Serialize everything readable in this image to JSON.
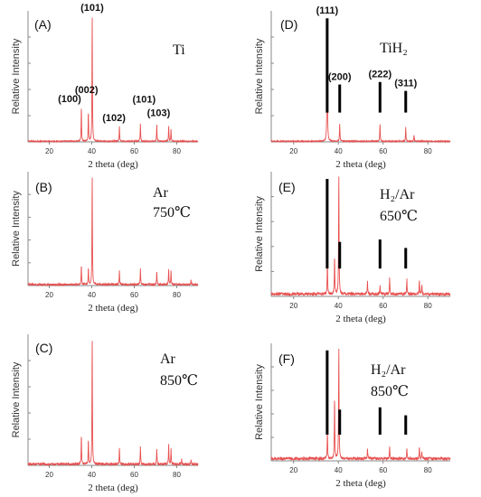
{
  "colors": {
    "trace": "#e85050",
    "axis": "#888888",
    "ref_line": "#000000"
  },
  "chart_data": [
    {
      "type": "line",
      "panel_label": "(A)",
      "condition_lines": [
        "Ti"
      ],
      "xlabel": "2 theta (deg)",
      "ylabel": "Relative Intensity",
      "xlim": [
        10,
        90
      ],
      "ylim": [
        0,
        1
      ],
      "xticks": [
        20,
        40,
        60,
        80
      ],
      "grid": false,
      "baseline": 0.005,
      "noise": 0.004,
      "peaks": [
        {
          "x": 35.1,
          "y": 0.27,
          "label": "(100)"
        },
        {
          "x": 38.4,
          "y": 0.24,
          "label": "(002)"
        },
        {
          "x": 40.2,
          "y": 1.0,
          "label": "(101)"
        },
        {
          "x": 53.0,
          "y": 0.12,
          "label": "(102)"
        },
        {
          "x": 62.9,
          "y": 0.14,
          "label": "(101)"
        },
        {
          "x": 70.6,
          "y": 0.13,
          "label": "(103)"
        },
        {
          "x": 76.2,
          "y": 0.12,
          "label": ""
        },
        {
          "x": 77.3,
          "y": 0.09,
          "label": ""
        }
      ]
    },
    {
      "type": "line",
      "panel_label": "(D)",
      "condition_lines": [
        "TiH₂"
      ],
      "xlabel": "2 theta (deg)",
      "ylabel": "Relative Intensity",
      "xlim": [
        10,
        90
      ],
      "ylim": [
        0,
        1
      ],
      "xticks": [
        20,
        40,
        60,
        80
      ],
      "grid": false,
      "baseline": 0.005,
      "noise": 0.004,
      "peaks": [
        {
          "x": 35.0,
          "y": 1.0,
          "label": ""
        },
        {
          "x": 40.6,
          "y": 0.14,
          "label": ""
        },
        {
          "x": 58.6,
          "y": 0.14,
          "label": ""
        },
        {
          "x": 70.1,
          "y": 0.11,
          "label": ""
        },
        {
          "x": 73.8,
          "y": 0.05,
          "label": ""
        }
      ],
      "reference_lines": [
        {
          "x": 35.0,
          "y": 0.74,
          "label": "(111)"
        },
        {
          "x": 40.6,
          "y": 0.22,
          "label": "(200)"
        },
        {
          "x": 58.6,
          "y": 0.24,
          "label": "(222)"
        },
        {
          "x": 70.1,
          "y": 0.17,
          "label": "(311)"
        }
      ]
    },
    {
      "type": "line",
      "panel_label": "(B)",
      "condition_lines": [
        "Ar",
        "750℃"
      ],
      "xlabel": "2 theta (deg)",
      "ylabel": "Relative Intensity",
      "xlim": [
        10,
        90
      ],
      "ylim": [
        0,
        1
      ],
      "xticks": [
        20,
        40,
        60,
        80
      ],
      "grid": false,
      "baseline": 0.01,
      "noise": 0.008,
      "peaks": [
        {
          "x": 35.1,
          "y": 0.18,
          "label": ""
        },
        {
          "x": 38.4,
          "y": 0.16,
          "label": ""
        },
        {
          "x": 40.2,
          "y": 1.0,
          "label": ""
        },
        {
          "x": 53.0,
          "y": 0.13,
          "label": ""
        },
        {
          "x": 62.9,
          "y": 0.14,
          "label": ""
        },
        {
          "x": 70.6,
          "y": 0.12,
          "label": ""
        },
        {
          "x": 76.2,
          "y": 0.14,
          "label": ""
        },
        {
          "x": 77.3,
          "y": 0.12,
          "label": ""
        },
        {
          "x": 86.7,
          "y": 0.04,
          "label": ""
        }
      ]
    },
    {
      "type": "line",
      "panel_label": "(E)",
      "condition_lines": [
        "H₂/Ar",
        "650℃"
      ],
      "xlabel": "2 theta (deg)",
      "ylabel": "Relative Intensity",
      "xlim": [
        10,
        90
      ],
      "ylim": [
        0,
        1
      ],
      "xticks": [
        20,
        40,
        60,
        80
      ],
      "grid": false,
      "baseline": 0.02,
      "noise": 0.012,
      "peaks": [
        {
          "x": 35.1,
          "y": 0.28,
          "label": ""
        },
        {
          "x": 38.3,
          "y": 0.32,
          "label": ""
        },
        {
          "x": 40.2,
          "y": 1.0,
          "label": ""
        },
        {
          "x": 53.0,
          "y": 0.11,
          "label": ""
        },
        {
          "x": 58.6,
          "y": 0.07,
          "label": ""
        },
        {
          "x": 62.9,
          "y": 0.13,
          "label": ""
        },
        {
          "x": 70.6,
          "y": 0.12,
          "label": ""
        },
        {
          "x": 76.2,
          "y": 0.11,
          "label": ""
        },
        {
          "x": 77.3,
          "y": 0.08,
          "label": ""
        }
      ],
      "reference_lines": [
        {
          "x": 35.0,
          "y": 0.74,
          "label": ""
        },
        {
          "x": 40.6,
          "y": 0.22,
          "label": ""
        },
        {
          "x": 58.6,
          "y": 0.24,
          "label": ""
        },
        {
          "x": 70.1,
          "y": 0.17,
          "label": ""
        }
      ]
    },
    {
      "type": "line",
      "panel_label": "(C)",
      "condition_lines": [
        "Ar",
        "850℃"
      ],
      "xlabel": "2 theta (deg)",
      "ylabel": "Relative Intensity",
      "xlim": [
        10,
        90
      ],
      "ylim": [
        0,
        1
      ],
      "xticks": [
        20,
        40,
        60,
        80
      ],
      "grid": false,
      "baseline": 0.01,
      "noise": 0.008,
      "peaks": [
        {
          "x": 35.1,
          "y": 0.23,
          "label": ""
        },
        {
          "x": 38.4,
          "y": 0.2,
          "label": ""
        },
        {
          "x": 40.2,
          "y": 1.0,
          "label": ""
        },
        {
          "x": 53.0,
          "y": 0.13,
          "label": ""
        },
        {
          "x": 62.9,
          "y": 0.14,
          "label": ""
        },
        {
          "x": 70.6,
          "y": 0.12,
          "label": ""
        },
        {
          "x": 76.2,
          "y": 0.16,
          "label": ""
        },
        {
          "x": 77.3,
          "y": 0.12,
          "label": ""
        },
        {
          "x": 82.3,
          "y": 0.04,
          "label": ""
        },
        {
          "x": 86.7,
          "y": 0.04,
          "label": ""
        }
      ]
    },
    {
      "type": "line",
      "panel_label": "(F)",
      "condition_lines": [
        "H₂/Ar",
        "850℃"
      ],
      "xlabel": "2 theta (deg)",
      "ylabel": "Relative Intensity",
      "xlim": [
        10,
        90
      ],
      "ylim": [
        0,
        1
      ],
      "xticks": [
        20,
        40,
        60,
        80
      ],
      "grid": false,
      "baseline": 0.02,
      "noise": 0.012,
      "peaks": [
        {
          "x": 35.1,
          "y": 0.23,
          "label": ""
        },
        {
          "x": 38.3,
          "y": 0.55,
          "label": ""
        },
        {
          "x": 40.2,
          "y": 1.0,
          "label": ""
        },
        {
          "x": 53.0,
          "y": 0.09,
          "label": ""
        },
        {
          "x": 62.9,
          "y": 0.11,
          "label": ""
        },
        {
          "x": 70.6,
          "y": 0.09,
          "label": ""
        },
        {
          "x": 76.2,
          "y": 0.1,
          "label": ""
        },
        {
          "x": 77.3,
          "y": 0.07,
          "label": ""
        }
      ],
      "reference_lines": [
        {
          "x": 35.0,
          "y": 0.74,
          "label": ""
        },
        {
          "x": 40.6,
          "y": 0.22,
          "label": ""
        },
        {
          "x": 58.6,
          "y": 0.24,
          "label": ""
        },
        {
          "x": 70.1,
          "y": 0.17,
          "label": ""
        }
      ]
    }
  ]
}
